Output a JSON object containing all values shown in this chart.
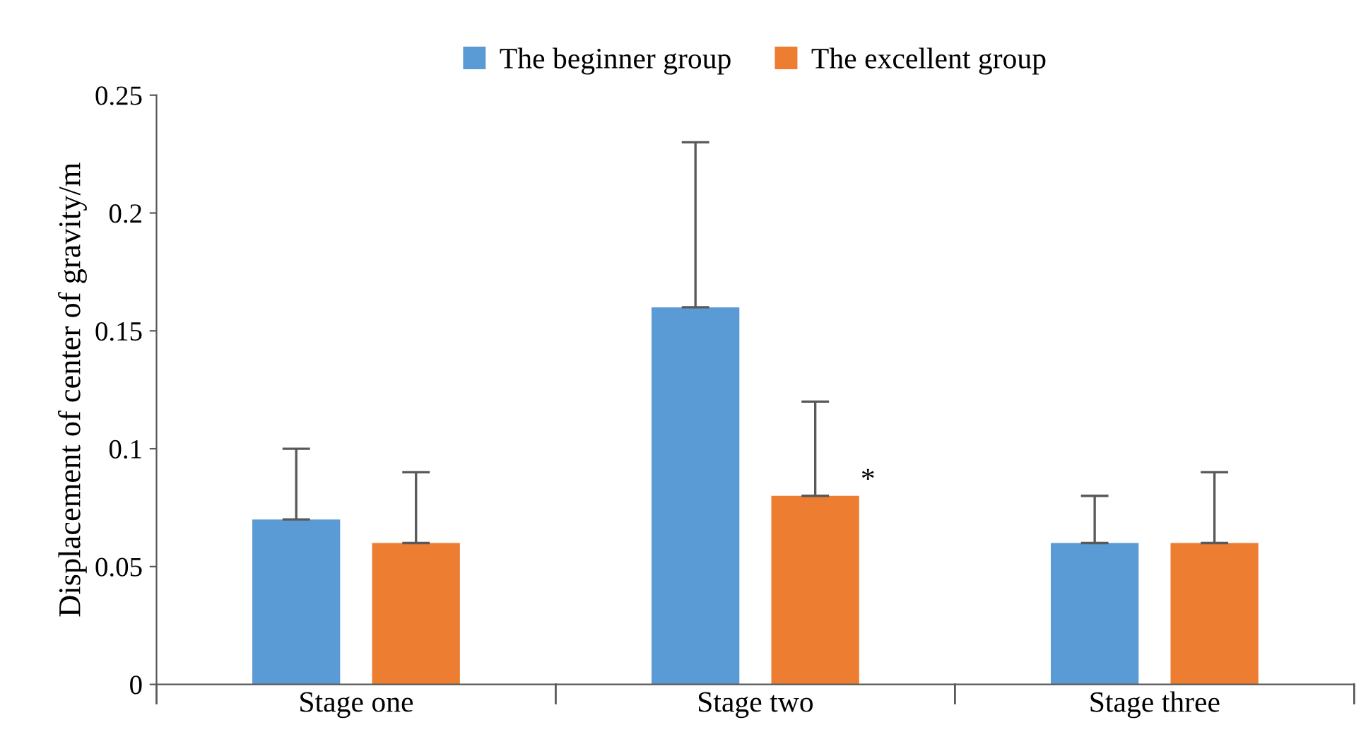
{
  "chart_data": {
    "type": "bar",
    "ylabel": "Displacement of center of gravity/m",
    "categories": [
      "Stage one",
      "Stage two",
      "Stage three"
    ],
    "series": [
      {
        "name": "The beginner group",
        "color": "#5b9bd5",
        "values": [
          0.07,
          0.16,
          0.06
        ],
        "errors": [
          [
            0.07,
            0.1
          ],
          [
            0.16,
            0.23
          ],
          [
            0.06,
            0.08
          ]
        ]
      },
      {
        "name": "The excellent group",
        "color": "#ed7d31",
        "values": [
          0.06,
          0.08,
          0.06
        ],
        "errors": [
          [
            0.06,
            0.09
          ],
          [
            0.08,
            0.12
          ],
          [
            0.06,
            0.09
          ]
        ]
      }
    ],
    "ylim": [
      0,
      0.25
    ],
    "yticks": [
      0,
      0.05,
      {
        "value": 0.1,
        "label": "0.1"
      },
      0.15,
      {
        "value": 0.2,
        "label": "0.2"
      },
      0.25
    ],
    "grid": false,
    "legend": "top",
    "annotations": [
      "*"
    ]
  }
}
